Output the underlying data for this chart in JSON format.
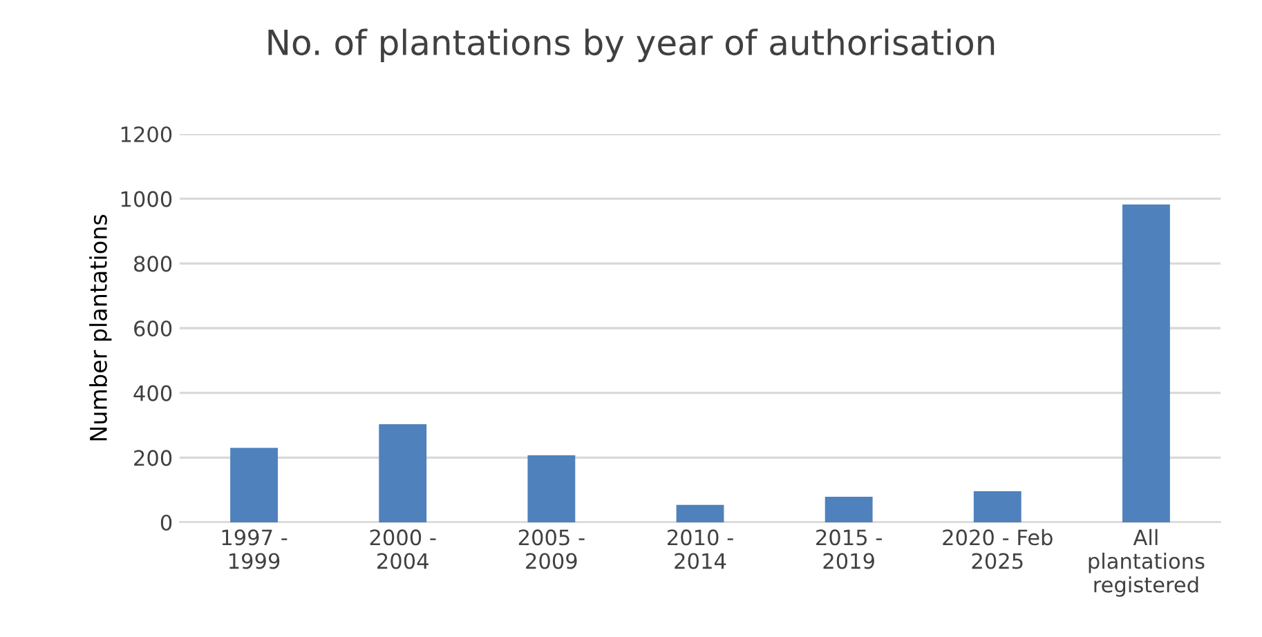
{
  "chart_data": {
    "type": "bar",
    "title": "No. of plantations by year of authorisation",
    "ylabel": "Number plantations",
    "categories": [
      "1997 -\n1999",
      "2000 -\n2004",
      "2005 -\n2009",
      "2010 -\n2014",
      "2015 -\n2019",
      "2020 - Feb\n2025",
      "All\nplantations\nregistered"
    ],
    "values": [
      230,
      303,
      207,
      54,
      79,
      96,
      982
    ],
    "color": "#4f81bd",
    "ylim": [
      0,
      1200
    ],
    "yticks": [
      0,
      200,
      400,
      600,
      800,
      1000,
      1200
    ],
    "grid": "y"
  }
}
